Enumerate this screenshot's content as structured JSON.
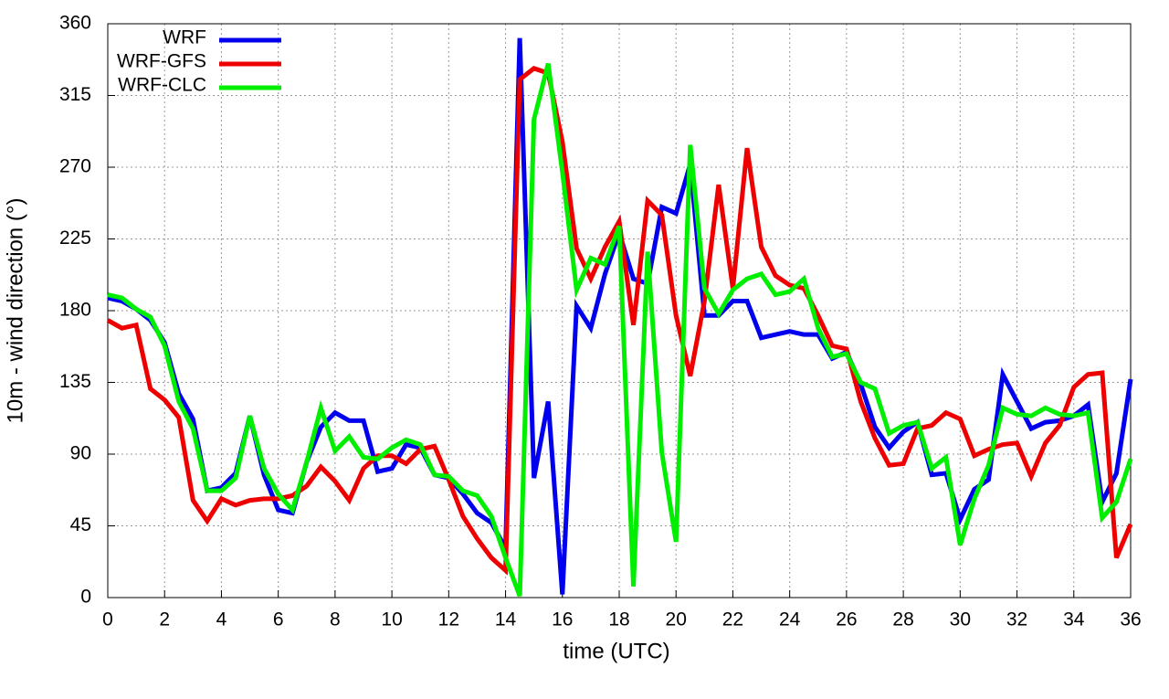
{
  "chart_data": {
    "type": "line",
    "xlabel": "time (UTC)",
    "ylabel": "10m - wind direction (°)",
    "x": [
      0,
      0.5,
      1,
      1.5,
      2,
      2.5,
      3,
      3.5,
      4,
      4.5,
      5,
      5.5,
      6,
      6.5,
      7,
      7.5,
      8,
      8.5,
      9,
      9.5,
      10,
      10.5,
      11,
      11.5,
      12,
      12.5,
      13,
      13.5,
      14,
      14.5,
      15,
      15.5,
      16,
      16.5,
      17,
      17.5,
      18,
      18.5,
      19,
      19.5,
      20,
      20.5,
      21,
      21.5,
      22,
      22.5,
      23,
      23.5,
      24,
      24.5,
      25,
      25.5,
      26,
      26.5,
      27,
      27.5,
      28,
      28.5,
      29,
      29.5,
      30,
      30.5,
      31,
      31.5,
      32,
      32.5,
      33,
      33.5,
      34,
      34.5,
      35,
      35.5,
      36
    ],
    "series": [
      {
        "name": "WRF",
        "color": "#0000ee",
        "values": [
          188,
          186,
          181,
          174,
          160,
          128,
          112,
          67,
          69,
          78,
          114,
          77,
          55,
          53,
          85,
          107,
          116,
          111,
          111,
          79,
          81,
          96,
          94,
          77,
          75,
          65,
          53,
          47,
          31,
          351,
          75,
          123,
          2,
          183,
          169,
          203,
          229,
          200,
          197,
          245,
          241,
          272,
          177,
          177,
          186,
          186,
          163,
          165,
          167,
          165,
          165,
          150,
          154,
          134,
          107,
          94,
          104,
          110,
          77,
          78,
          49,
          68,
          74,
          140,
          123,
          106,
          110,
          111,
          114,
          121,
          60,
          78,
          137
        ]
      },
      {
        "name": "WRF-GFS",
        "color": "#ee0000",
        "values": [
          174,
          169,
          171,
          131,
          124,
          113,
          61,
          48,
          62,
          58,
          61,
          62,
          62,
          64,
          70,
          82,
          73,
          61,
          81,
          89,
          89,
          84,
          93,
          95,
          74,
          51,
          37,
          25,
          17,
          325,
          332,
          329,
          286,
          219,
          200,
          220,
          236,
          171,
          249,
          240,
          177,
          139,
          186,
          259,
          194,
          282,
          220,
          202,
          196,
          194,
          177,
          158,
          156,
          123,
          100,
          83,
          84,
          106,
          108,
          116,
          112,
          89,
          93,
          96,
          97,
          76,
          97,
          108,
          132,
          140,
          141,
          25,
          46
        ]
      },
      {
        "name": "WRF-CLC",
        "color": "#00ee00",
        "values": [
          190,
          188,
          181,
          176,
          158,
          123,
          106,
          67,
          67,
          75,
          114,
          81,
          65,
          55,
          85,
          119,
          92,
          101,
          88,
          87,
          94,
          99,
          96,
          77,
          76,
          67,
          64,
          51,
          25,
          1,
          300,
          335,
          267,
          193,
          213,
          209,
          233,
          7,
          217,
          91,
          35,
          284,
          194,
          178,
          193,
          200,
          203,
          190,
          192,
          200,
          169,
          151,
          153,
          135,
          131,
          103,
          108,
          110,
          81,
          88,
          33,
          62,
          83,
          119,
          115,
          114,
          119,
          115,
          114,
          116,
          50,
          60,
          87
        ]
      }
    ],
    "xlim": [
      0,
      36
    ],
    "xticks": [
      0,
      2,
      4,
      6,
      8,
      10,
      12,
      14,
      16,
      18,
      20,
      22,
      24,
      26,
      28,
      30,
      32,
      34,
      36
    ],
    "ylim": [
      0,
      360
    ],
    "yticks": [
      0,
      45,
      90,
      135,
      180,
      225,
      270,
      315,
      360
    ],
    "grid": true,
    "legend": "top-left"
  }
}
